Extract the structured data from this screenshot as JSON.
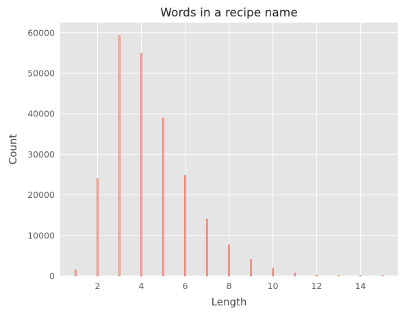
{
  "chart_data": {
    "type": "bar",
    "title": "Words in a recipe name",
    "xlabel": "Length",
    "ylabel": "Count",
    "x": [
      1,
      2,
      3,
      4,
      5,
      6,
      7,
      8,
      9,
      10,
      11,
      12,
      13,
      14,
      15
    ],
    "values": [
      1500,
      24000,
      59300,
      55000,
      39000,
      24800,
      14000,
      7700,
      4100,
      1900,
      700,
      250,
      100,
      40,
      15
    ],
    "xlim": [
      0.3,
      15.7
    ],
    "ylim": [
      0,
      62500
    ],
    "xticks": [
      "2",
      "4",
      "6",
      "8",
      "10",
      "12",
      "14"
    ],
    "yticks": [
      "0",
      "10000",
      "20000",
      "30000",
      "40000",
      "50000",
      "60000"
    ],
    "grid": true,
    "colors": {
      "background": "#e5e5e5",
      "grid": "#ffffff",
      "bar_fill": "#eab0a5",
      "bar_edge": "#e2695a"
    }
  }
}
